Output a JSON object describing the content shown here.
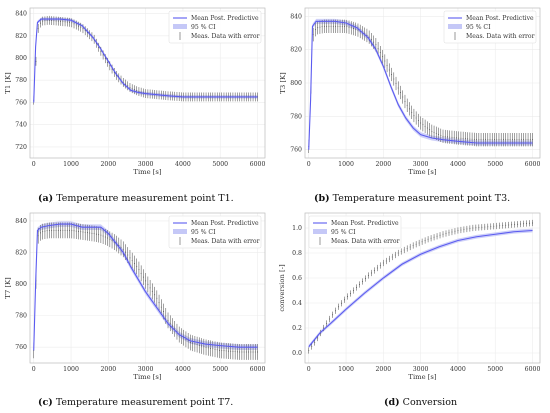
{
  "captions": [
    {
      "label": "(a)",
      "text": "Temperature measurement point T1."
    },
    {
      "label": "(b)",
      "text": "Temperature measurement point T3."
    },
    {
      "label": "(c)",
      "text": "Temperature measurement point T7."
    },
    {
      "label": "(d)",
      "text": "Conversion"
    }
  ],
  "legend": {
    "mean": "Mean Post. Predictive",
    "ci": "95 % CI",
    "meas": "Meas. Data with error"
  },
  "colors": {
    "mean": "#5b5bf0",
    "ci": "#c5c8f7",
    "meas": "#555555"
  },
  "chart_data": [
    {
      "type": "line",
      "xlabel": "Time [s]",
      "ylabel": "T1 [K]",
      "xlim": [
        -100,
        6200
      ],
      "ylim": [
        710,
        845
      ],
      "xticks": [
        0,
        1000,
        2000,
        3000,
        4000,
        5000,
        6000
      ],
      "yticks": [
        720,
        740,
        760,
        780,
        800,
        820,
        840
      ],
      "legend_position": "top-right",
      "grid": true,
      "mean": {
        "x": [
          0,
          50,
          100,
          200,
          400,
          700,
          1000,
          1300,
          1600,
          1800,
          2000,
          2200,
          2400,
          2600,
          2800,
          3000,
          3300,
          3600,
          4000,
          4500,
          5000,
          5500,
          6000
        ],
        "y": [
          760,
          810,
          832,
          835,
          835,
          835,
          834,
          829,
          818,
          808,
          797,
          786,
          777,
          771,
          769,
          768,
          767,
          766,
          765,
          765,
          765,
          765,
          765
        ]
      },
      "ci_half": 1.5,
      "meas": {
        "x": [
          0,
          50,
          100,
          200,
          400,
          700,
          1000,
          1300,
          1600,
          1800,
          2000,
          2200,
          2400,
          2600,
          2800,
          3000,
          3300,
          3600,
          4000,
          4500,
          5000,
          5500,
          6000
        ],
        "y": [
          762,
          790,
          825,
          833,
          834,
          833,
          832,
          827,
          818,
          806,
          795,
          785,
          778,
          773,
          770,
          768,
          767,
          766,
          765,
          765,
          765,
          765,
          765
        ]
      },
      "meas_err": 4
    },
    {
      "type": "line",
      "xlabel": "Time [s]",
      "ylabel": "T3 [K]",
      "xlim": [
        -100,
        6200
      ],
      "ylim": [
        755,
        845
      ],
      "xticks": [
        0,
        1000,
        2000,
        3000,
        4000,
        5000,
        6000
      ],
      "yticks": [
        760,
        780,
        800,
        820,
        840
      ],
      "legend_position": "top-right",
      "grid": true,
      "mean": {
        "x": [
          0,
          50,
          100,
          200,
          400,
          700,
          1000,
          1300,
          1600,
          1800,
          2000,
          2200,
          2400,
          2600,
          2800,
          3000,
          3300,
          3600,
          4000,
          4500,
          5000,
          5500,
          6000
        ],
        "y": [
          760,
          790,
          834,
          837,
          837,
          837,
          836,
          833,
          827,
          820,
          810,
          798,
          787,
          779,
          773,
          769,
          767,
          766,
          765,
          764,
          764,
          764,
          764
        ]
      },
      "ci_half": 1.5,
      "meas": {
        "x": [
          0,
          50,
          100,
          200,
          400,
          700,
          1000,
          1300,
          1600,
          1800,
          2000,
          2200,
          2400,
          2600,
          2800,
          3000,
          3300,
          3600,
          4000,
          4500,
          5000,
          5500,
          6000
        ],
        "y": [
          762,
          790,
          828,
          833,
          834,
          834,
          834,
          832,
          828,
          823,
          815,
          806,
          797,
          788,
          781,
          776,
          771,
          768,
          767,
          766,
          766,
          766,
          766
        ]
      },
      "meas_err": 4
    },
    {
      "type": "line",
      "xlabel": "Time [s]",
      "ylabel": "T7 [K]",
      "xlim": [
        -100,
        6200
      ],
      "ylim": [
        750,
        845
      ],
      "xticks": [
        0,
        1000,
        2000,
        3000,
        4000,
        5000,
        6000
      ],
      "yticks": [
        760,
        780,
        800,
        820,
        840
      ],
      "legend_position": "top-right",
      "grid": true,
      "mean": {
        "x": [
          0,
          50,
          100,
          200,
          400,
          700,
          1000,
          1300,
          1600,
          1800,
          2000,
          2200,
          2400,
          2600,
          2800,
          3000,
          3300,
          3600,
          3900,
          4200,
          4600,
          5000,
          5500,
          6000
        ],
        "y": [
          758,
          800,
          834,
          836,
          837,
          838,
          838,
          836,
          836,
          836,
          832,
          826,
          820,
          811,
          803,
          795,
          785,
          775,
          768,
          764,
          762,
          761,
          760,
          760
        ]
      },
      "ci_half": 1.8,
      "meas": {
        "x": [
          0,
          50,
          100,
          200,
          400,
          700,
          1000,
          1300,
          1600,
          1800,
          2000,
          2200,
          2400,
          2600,
          2800,
          3000,
          3300,
          3600,
          3900,
          4200,
          4600,
          5000,
          5500,
          6000
        ],
        "y": [
          758,
          795,
          830,
          833,
          834,
          834,
          834,
          833,
          832,
          831,
          829,
          826,
          822,
          816,
          810,
          802,
          791,
          777,
          768,
          763,
          760,
          758,
          757,
          757
        ]
      },
      "meas_err": 5
    },
    {
      "type": "line",
      "xlabel": "Time [s]",
      "ylabel": "conversion [-]",
      "xlim": [
        -100,
        6200
      ],
      "ylim": [
        -0.08,
        1.12
      ],
      "xticks": [
        0,
        1000,
        2000,
        3000,
        4000,
        5000,
        6000
      ],
      "yticks": [
        0.0,
        0.2,
        0.4,
        0.6,
        0.8,
        1.0
      ],
      "legend_position": "top-left",
      "grid": true,
      "mean": {
        "x": [
          0,
          300,
          600,
          1000,
          1500,
          2000,
          2500,
          3000,
          3500,
          4000,
          4500,
          5000,
          5500,
          6000
        ],
        "y": [
          0.05,
          0.16,
          0.24,
          0.35,
          0.48,
          0.6,
          0.71,
          0.79,
          0.85,
          0.9,
          0.93,
          0.95,
          0.97,
          0.98
        ]
      },
      "ci_half": 0.015,
      "meas": {
        "x": [
          0,
          200,
          400,
          600,
          800,
          1000,
          1300,
          1600,
          2000,
          2400,
          2800,
          3200,
          3600,
          4000,
          4400,
          4800,
          5200,
          5600,
          6000
        ],
        "y": [
          0.02,
          0.1,
          0.2,
          0.29,
          0.37,
          0.44,
          0.53,
          0.62,
          0.72,
          0.8,
          0.86,
          0.91,
          0.95,
          0.98,
          1.0,
          1.01,
          1.02,
          1.03,
          1.04
        ]
      },
      "meas_err": 0.025
    }
  ]
}
